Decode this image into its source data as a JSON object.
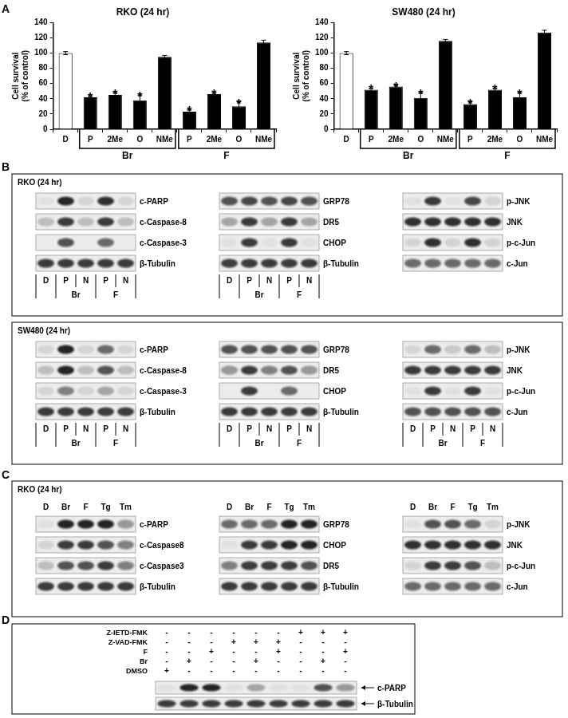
{
  "chart_data": [
    {
      "type": "bar",
      "title": "RKO (24 hr)",
      "y_label": [
        "Cell survival",
        "(% of control)"
      ],
      "categories": [
        "D",
        "P",
        "2Me",
        "O",
        "NMe",
        "P",
        "2Me",
        "O",
        "NMe"
      ],
      "values": [
        100,
        42,
        45,
        38,
        95,
        23,
        46,
        30,
        114
      ],
      "errors": [
        2,
        2,
        3,
        7,
        2,
        3,
        2,
        6,
        3
      ],
      "colors": [
        "#ffffff",
        "#000000",
        "#000000",
        "#000000",
        "#000000",
        "#000000",
        "#000000",
        "#000000",
        "#000000"
      ],
      "value_annotations": [
        null,
        "*",
        "*",
        "*",
        null,
        "*",
        "*",
        "*",
        null
      ],
      "group_labels": [
        null,
        "Br",
        "Br",
        "Br",
        "Br",
        "F",
        "F",
        "F",
        "F"
      ],
      "ylim": [
        0,
        140
      ],
      "yticks": [
        0,
        20,
        40,
        60,
        80,
        100,
        120,
        140
      ],
      "grid": false
    },
    {
      "type": "bar",
      "title": "SW480 (24 hr)",
      "y_label": [
        "Cell survival",
        "(% of control)"
      ],
      "categories": [
        "D",
        "P",
        "2Me",
        "O",
        "NMe",
        "P",
        "2Me",
        "O",
        "NMe"
      ],
      "values": [
        100,
        52,
        56,
        41,
        116,
        33,
        52,
        42,
        127
      ],
      "errors": [
        2,
        2,
        2,
        7,
        2,
        3,
        2,
        6,
        3
      ],
      "colors": [
        "#ffffff",
        "#000000",
        "#000000",
        "#000000",
        "#000000",
        "#000000",
        "#000000",
        "#000000",
        "#000000"
      ],
      "value_annotations": [
        null,
        "*",
        "*",
        "*",
        null,
        "*",
        "*",
        "*",
        null
      ],
      "group_labels": [
        null,
        "Br",
        "Br",
        "Br",
        "Br",
        "F",
        "F",
        "F",
        "F"
      ],
      "ylim": [
        0,
        140
      ],
      "yticks": [
        0,
        20,
        40,
        60,
        80,
        100,
        120,
        140
      ],
      "grid": false
    }
  ],
  "panel_labels": [
    "A",
    "B",
    "C",
    "D"
  ],
  "blot_panels": [
    {
      "sections": [
        {
          "title": "RKO (24 hr)",
          "blots": [
            {
              "rows": [
                {
                  "name": "c-PARP",
                  "bands": [
                    0.05,
                    0.9,
                    0.1,
                    0.85,
                    0.1
                  ]
                },
                {
                  "name": "c-Caspase-8",
                  "bands": [
                    0.2,
                    0.8,
                    0.2,
                    0.8,
                    0.2
                  ]
                },
                {
                  "name": "c-Caspase-3",
                  "bands": [
                    0,
                    0.7,
                    0,
                    0.6,
                    0
                  ]
                },
                {
                  "name": "β-Tubulin",
                  "bands": [
                    0.8,
                    0.8,
                    0.8,
                    0.8,
                    0.8
                  ]
                }
              ],
              "lanes": [
                "D",
                "P",
                "N",
                "P",
                "N"
              ],
              "lane_groups": [
                null,
                "Br",
                "Br",
                "F",
                "F"
              ]
            },
            {
              "rows": [
                {
                  "name": "GRP78",
                  "bands": [
                    0.7,
                    0.75,
                    0.7,
                    0.75,
                    0.7
                  ]
                },
                {
                  "name": "DR5",
                  "bands": [
                    0.3,
                    0.8,
                    0.35,
                    0.8,
                    0.3
                  ]
                },
                {
                  "name": "CHOP",
                  "bands": [
                    0.05,
                    0.8,
                    0.05,
                    0.8,
                    0.05
                  ]
                },
                {
                  "name": "β-Tubulin",
                  "bands": [
                    0.8,
                    0.8,
                    0.8,
                    0.8,
                    0.8
                  ]
                }
              ],
              "lanes": [
                "D",
                "P",
                "N",
                "P",
                "N"
              ],
              "lane_groups": [
                null,
                "Br",
                "Br",
                "F",
                "F"
              ]
            },
            {
              "rows": [
                {
                  "name": "p-JNK",
                  "bands": [
                    0.05,
                    0.8,
                    0.05,
                    0.75,
                    0.1
                  ]
                },
                {
                  "name": "JNK",
                  "bands": [
                    0.85,
                    0.85,
                    0.85,
                    0.85,
                    0.85
                  ]
                },
                {
                  "name": "p-c-Jun",
                  "bands": [
                    0.1,
                    0.85,
                    0.1,
                    0.85,
                    0.1
                  ]
                },
                {
                  "name": "c-Jun",
                  "bands": [
                    0.6,
                    0.6,
                    0.6,
                    0.6,
                    0.6
                  ]
                }
              ]
            }
          ]
        },
        {
          "title": "SW480 (24 hr)",
          "blots": [
            {
              "rows": [
                {
                  "name": "c-PARP",
                  "bands": [
                    0.1,
                    0.9,
                    0.1,
                    0.6,
                    0.1
                  ]
                },
                {
                  "name": "c-Caspase-8",
                  "bands": [
                    0.2,
                    0.9,
                    0.2,
                    0.7,
                    0.2
                  ]
                },
                {
                  "name": "c-Caspase-3",
                  "bands": [
                    0.1,
                    0.5,
                    0.1,
                    0.3,
                    0.1
                  ]
                },
                {
                  "name": "β-Tubulin",
                  "bands": [
                    0.8,
                    0.8,
                    0.8,
                    0.8,
                    0.8
                  ]
                }
              ],
              "lanes": [
                "D",
                "P",
                "N",
                "P",
                "N"
              ],
              "lane_groups": [
                null,
                "Br",
                "Br",
                "F",
                "F"
              ]
            },
            {
              "rows": [
                {
                  "name": "GRP78",
                  "bands": [
                    0.7,
                    0.7,
                    0.7,
                    0.7,
                    0.7
                  ]
                },
                {
                  "name": "DR5",
                  "bands": [
                    0.4,
                    0.8,
                    0.5,
                    0.7,
                    0.4
                  ]
                },
                {
                  "name": "CHOP",
                  "bands": [
                    0,
                    0.8,
                    0,
                    0.6,
                    0
                  ]
                },
                {
                  "name": "β-Tubulin",
                  "bands": [
                    0.8,
                    0.8,
                    0.8,
                    0.8,
                    0.8
                  ]
                }
              ],
              "lanes": [
                "D",
                "P",
                "N",
                "P",
                "N"
              ],
              "lane_groups": [
                null,
                "Br",
                "Br",
                "F",
                "F"
              ]
            },
            {
              "rows": [
                {
                  "name": "p-JNK",
                  "bands": [
                    0.1,
                    0.6,
                    0.15,
                    0.6,
                    0.2
                  ]
                },
                {
                  "name": "JNK",
                  "bands": [
                    0.8,
                    0.8,
                    0.8,
                    0.8,
                    0.8
                  ]
                },
                {
                  "name": "p-c-Jun",
                  "bands": [
                    0.05,
                    0.8,
                    0.05,
                    0.8,
                    0.05
                  ]
                },
                {
                  "name": "c-Jun",
                  "bands": [
                    0.7,
                    0.7,
                    0.7,
                    0.7,
                    0.7
                  ]
                }
              ],
              "lanes": [
                "D",
                "P",
                "N",
                "P",
                "N"
              ],
              "lane_groups": [
                null,
                "Br",
                "Br",
                "F",
                "F"
              ]
            }
          ]
        }
      ]
    },
    {
      "sections": [
        {
          "title": "RKO (24 hr)",
          "lanes": [
            "D",
            "Br",
            "F",
            "Tg",
            "Tm"
          ],
          "blots": [
            {
              "rows": [
                {
                  "name": "c-PARP",
                  "bands": [
                    0.05,
                    0.9,
                    0.9,
                    0.9,
                    0.4
                  ]
                },
                {
                  "name": "c-Caspase8",
                  "bands": [
                    0.1,
                    0.8,
                    0.8,
                    0.7,
                    0.5
                  ]
                },
                {
                  "name": "c-Caspase3",
                  "bands": [
                    0.2,
                    0.7,
                    0.7,
                    0.8,
                    0.5
                  ]
                },
                {
                  "name": "β-Tubulin",
                  "bands": [
                    0.8,
                    0.8,
                    0.8,
                    0.8,
                    0.8
                  ]
                }
              ]
            },
            {
              "rows": [
                {
                  "name": "GRP78",
                  "bands": [
                    0.6,
                    0.6,
                    0.6,
                    0.9,
                    0.9
                  ]
                },
                {
                  "name": "CHOP",
                  "bands": [
                    0.05,
                    0.8,
                    0.8,
                    0.9,
                    0.9
                  ]
                },
                {
                  "name": "DR5",
                  "bands": [
                    0.5,
                    0.8,
                    0.8,
                    0.8,
                    0.7
                  ]
                },
                {
                  "name": "β-Tubulin",
                  "bands": [
                    0.8,
                    0.8,
                    0.8,
                    0.8,
                    0.8
                  ]
                }
              ]
            },
            {
              "rows": [
                {
                  "name": "p-JNK",
                  "bands": [
                    0.05,
                    0.7,
                    0.7,
                    0.6,
                    0.1
                  ]
                },
                {
                  "name": "JNK",
                  "bands": [
                    0.85,
                    0.85,
                    0.85,
                    0.85,
                    0.85
                  ]
                },
                {
                  "name": "p-c-Jun",
                  "bands": [
                    0.1,
                    0.8,
                    0.8,
                    0.7,
                    0.2
                  ]
                },
                {
                  "name": "c-Jun",
                  "bands": [
                    0.6,
                    0.6,
                    0.6,
                    0.6,
                    0.6
                  ]
                }
              ]
            }
          ]
        }
      ]
    },
    {
      "treatments": [
        {
          "name": "Z-IETD-FMK",
          "signs": [
            "-",
            "-",
            "-",
            "-",
            "-",
            "-",
            "+",
            "+",
            "+"
          ]
        },
        {
          "name": "Z-VAD-FMK",
          "signs": [
            "-",
            "-",
            "-",
            "+",
            "+",
            "+",
            "-",
            "-",
            "-"
          ]
        },
        {
          "name": "F",
          "signs": [
            "-",
            "-",
            "+",
            "-",
            "-",
            "+",
            "-",
            "-",
            "+"
          ]
        },
        {
          "name": "Br",
          "signs": [
            "-",
            "+",
            "-",
            "-",
            "+",
            "-",
            "-",
            "+",
            "-"
          ]
        },
        {
          "name": "DMSO",
          "signs": [
            "+",
            "-",
            "-",
            "-",
            "-",
            "-",
            "-",
            "-",
            "-"
          ]
        }
      ],
      "rows": [
        {
          "name": "c-PARP",
          "bands": [
            0.05,
            0.9,
            0.9,
            0.05,
            0.3,
            0.05,
            0.05,
            0.7,
            0.4
          ]
        },
        {
          "name": "β-Tubulin",
          "bands": [
            0.8,
            0.8,
            0.8,
            0.8,
            0.8,
            0.8,
            0.8,
            0.8,
            0.8
          ]
        }
      ]
    }
  ]
}
